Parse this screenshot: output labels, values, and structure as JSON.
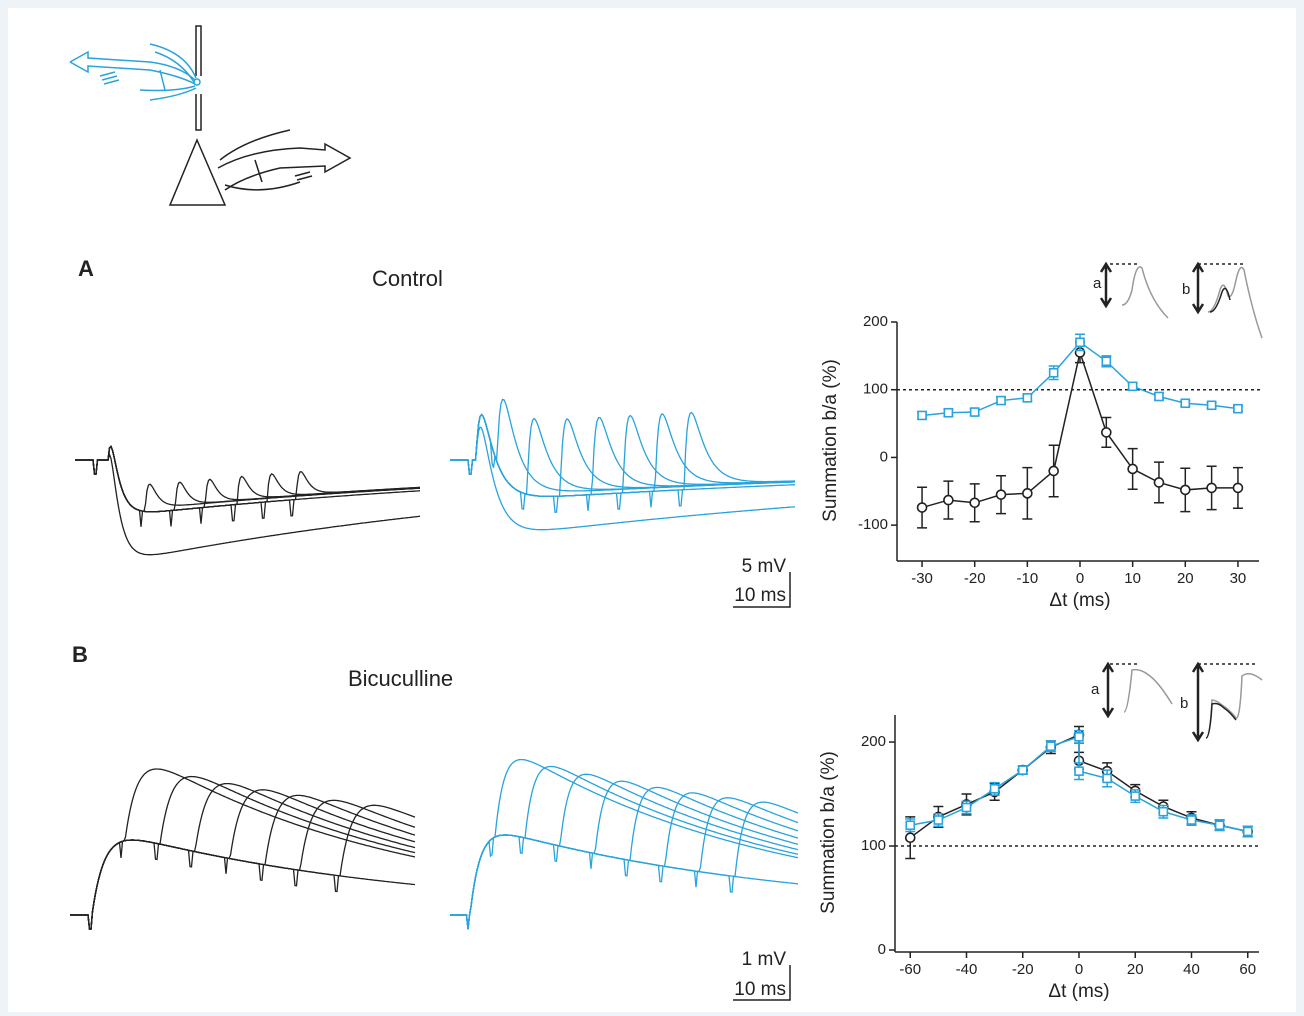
{
  "panels": [
    {
      "label": "A",
      "condition": "Control",
      "scale_v": "5 mV",
      "scale_t": "10 ms",
      "inset_labels": [
        "a",
        "b"
      ]
    },
    {
      "label": "B",
      "condition": "Bicuculline",
      "scale_v": "1 mV",
      "scale_t": "10 ms",
      "inset_labels": [
        "a",
        "b"
      ]
    }
  ],
  "chart_data": [
    {
      "type": "line",
      "ylabel": "Summation b/a (%)",
      "xlabel": "Δt (ms)",
      "x": [
        -30,
        -25,
        -20,
        -15,
        -10,
        -5,
        0,
        5,
        10,
        15,
        20,
        25,
        30
      ],
      "xlim": [
        -34,
        34
      ],
      "xticks": [
        -30,
        -20,
        -10,
        0,
        10,
        20,
        30
      ],
      "ylim": [
        -150,
        200
      ],
      "yticks": [
        -100,
        0,
        100,
        200
      ],
      "hline": 100,
      "series": [
        {
          "color": "#222222",
          "marker": "circle",
          "values": [
            -74,
            -63,
            -67,
            -55,
            -53,
            -20,
            155,
            37,
            -17,
            -37,
            -48,
            -45,
            -45
          ],
          "errors": [
            30,
            28,
            28,
            28,
            38,
            38,
            15,
            22,
            30,
            30,
            32,
            32,
            30
          ]
        },
        {
          "color": "#29a3dc",
          "marker": "square",
          "values": [
            62,
            66,
            67,
            84,
            88,
            125,
            170,
            142,
            105,
            90,
            80,
            77,
            72
          ],
          "errors": [
            5,
            5,
            5,
            5,
            5,
            10,
            12,
            8,
            5,
            5,
            4,
            4,
            4
          ]
        }
      ]
    },
    {
      "type": "line",
      "ylabel": "Summation b/a (%)",
      "xlabel": "Δt (ms)",
      "x": [
        -60,
        -50,
        -40,
        -30,
        -20,
        -10,
        0,
        0,
        10,
        20,
        30,
        40,
        50,
        60
      ],
      "xlim": [
        -64,
        64
      ],
      "xticks": [
        -60,
        -40,
        -20,
        0,
        20,
        40,
        60
      ],
      "ylim": [
        0,
        226
      ],
      "yticks": [
        0,
        100,
        200
      ],
      "hline": 100,
      "series": [
        {
          "color": "#222222",
          "marker": "circle",
          "values": [
            108,
            128,
            140,
            152,
            173,
            195,
            207,
            182,
            172,
            153,
            138,
            127,
            120,
            114
          ],
          "errors": [
            20,
            10,
            10,
            8,
            4,
            6,
            8,
            8,
            8,
            6,
            6,
            6,
            5,
            5
          ]
        },
        {
          "color": "#29a3dc",
          "marker": "square",
          "values": [
            120,
            125,
            137,
            155,
            173,
            196,
            205,
            172,
            165,
            148,
            133,
            125,
            120,
            114
          ],
          "errors": [
            6,
            6,
            6,
            6,
            4,
            5,
            6,
            8,
            8,
            6,
            6,
            5,
            5,
            5
          ]
        }
      ]
    }
  ]
}
